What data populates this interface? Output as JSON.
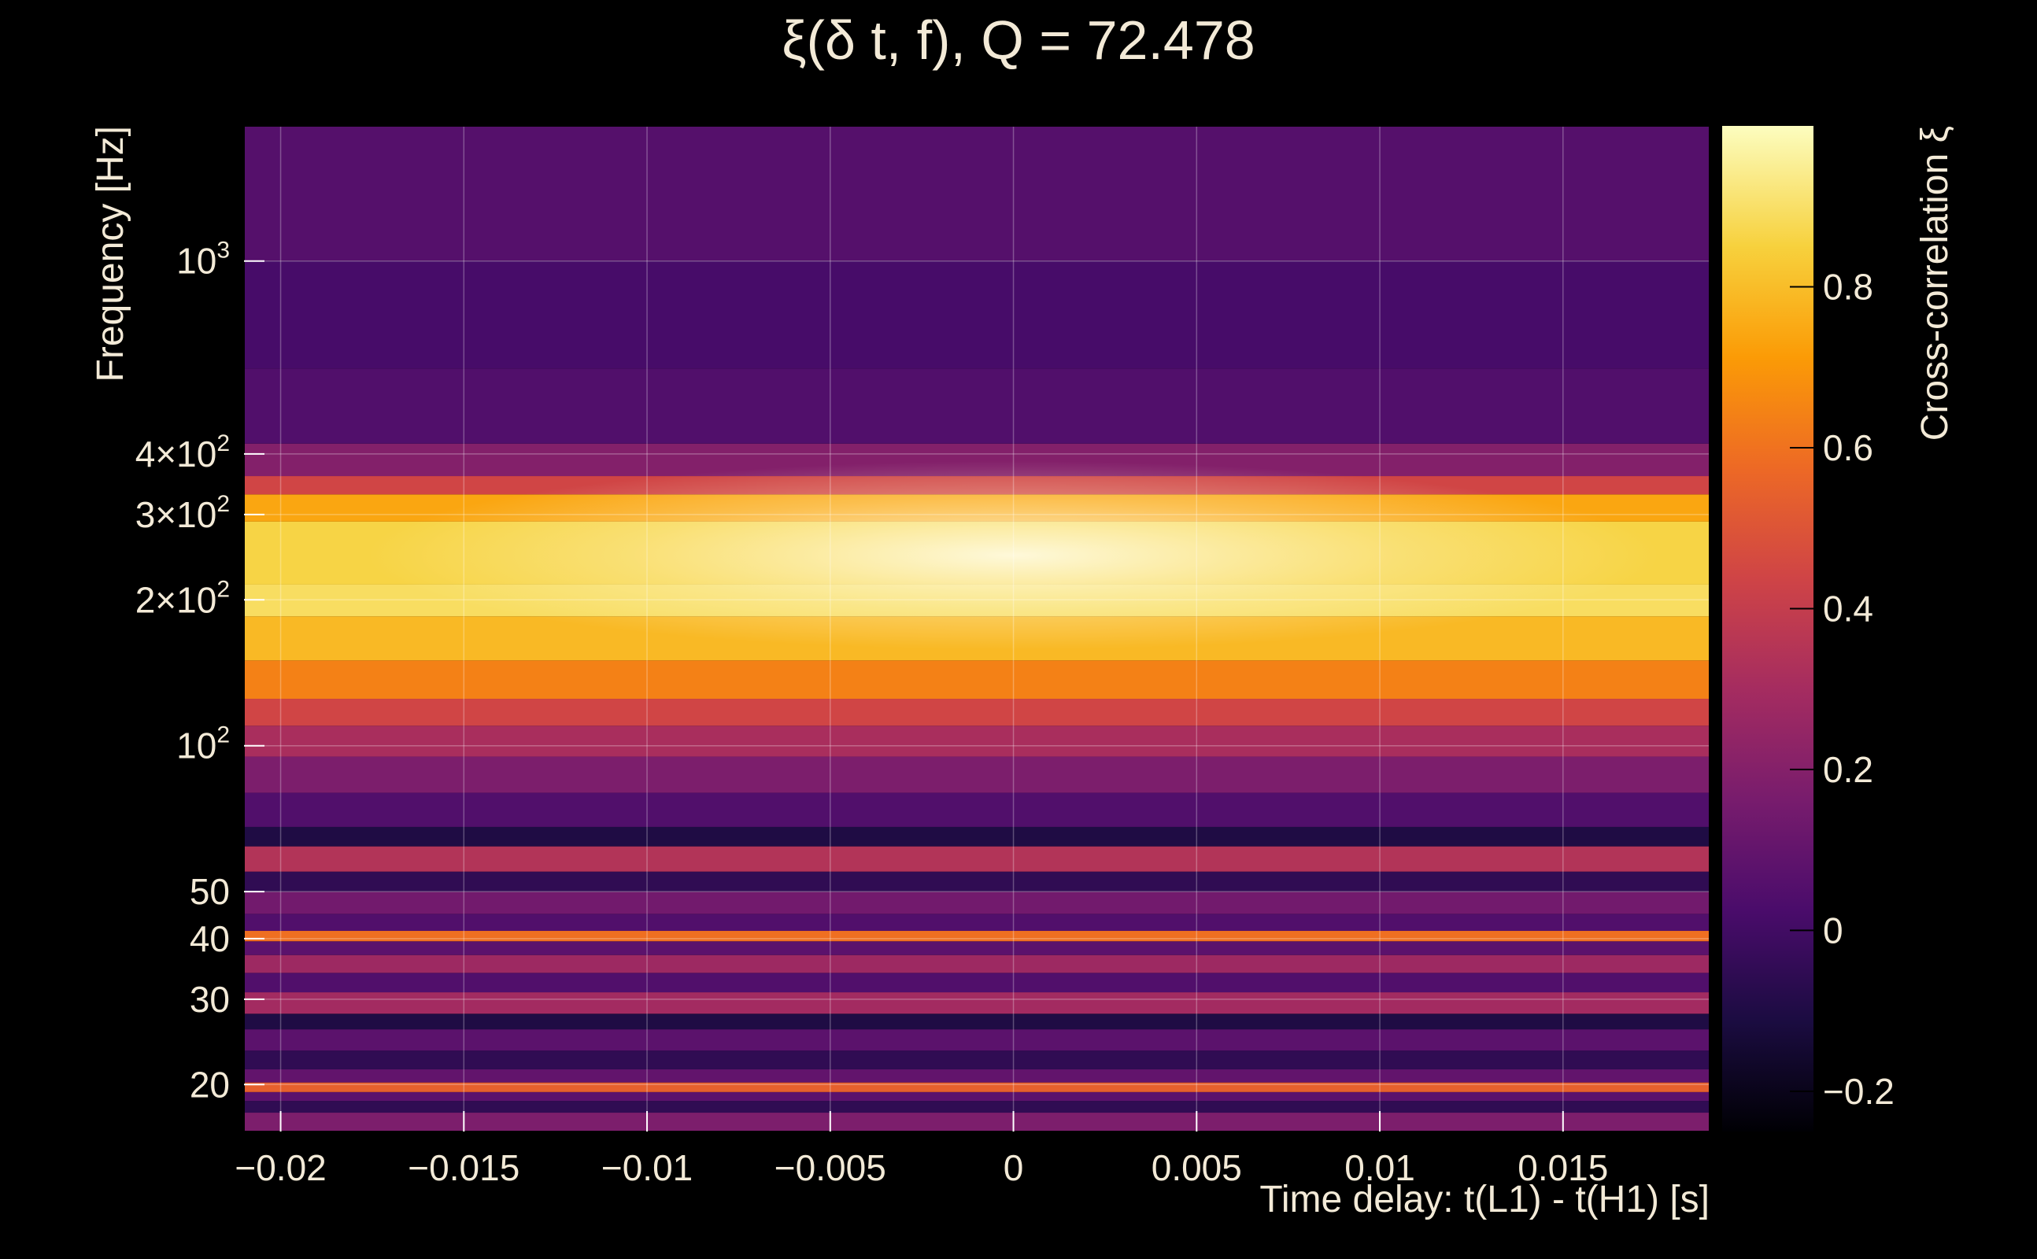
{
  "chart_data": {
    "type": "heatmap",
    "title": "ξ(δ t, f), Q = 72.478",
    "xlabel": "Time delay: t(L1) - t(H1) [s]",
    "ylabel": "Frequency [Hz]",
    "colorbar_label": "Cross-correlation ξ",
    "xlim": [
      -0.021,
      0.019
    ],
    "ylim": [
      16,
      1900
    ],
    "y_scale": "log",
    "grid": true,
    "colormap": [
      "#000004",
      "#1b0c41",
      "#4a0c6b",
      "#781c6d",
      "#a52c60",
      "#cf4446",
      "#ed6925",
      "#fb9b06",
      "#f7d13d",
      "#fcfdbf"
    ],
    "x_ticks": [
      {
        "value": -0.02,
        "label": "−0.02"
      },
      {
        "value": -0.015,
        "label": "−0.015"
      },
      {
        "value": -0.01,
        "label": "−0.01"
      },
      {
        "value": -0.005,
        "label": "−0.005"
      },
      {
        "value": 0,
        "label": "0"
      },
      {
        "value": 0.005,
        "label": "0.005"
      },
      {
        "value": 0.01,
        "label": "0.01"
      },
      {
        "value": 0.015,
        "label": "0.015"
      }
    ],
    "y_ticks": [
      {
        "value": 20,
        "label": "20"
      },
      {
        "value": 30,
        "label": "30"
      },
      {
        "value": 40,
        "label": "40"
      },
      {
        "value": 50,
        "label": "50"
      },
      {
        "value": 100,
        "label": "10",
        "exponent": "2"
      },
      {
        "value": 200,
        "label": "2×10",
        "exponent": "2"
      },
      {
        "value": 300,
        "label": "3×10",
        "exponent": "2"
      },
      {
        "value": 400,
        "label": "4×10",
        "exponent": "2"
      },
      {
        "value": 1000,
        "label": "10",
        "exponent": "3"
      }
    ],
    "colorbar": {
      "range": [
        -0.25,
        1.0
      ],
      "ticks": [
        {
          "value": 0.8,
          "label": "0.8"
        },
        {
          "value": 0.6,
          "label": "0.6"
        },
        {
          "value": 0.4,
          "label": "0.4"
        },
        {
          "value": 0.2,
          "label": "0.2"
        },
        {
          "value": 0,
          "label": "0"
        },
        {
          "value": -0.2,
          "label": "−0.2"
        }
      ]
    },
    "frequency_bands": [
      {
        "f_low": 16,
        "f_high": 17.5,
        "xi": 0.18
      },
      {
        "f_low": 17.5,
        "f_high": 18.5,
        "xi": -0.05
      },
      {
        "f_low": 18.5,
        "f_high": 19.3,
        "xi": 0.08
      },
      {
        "f_low": 19.3,
        "f_high": 20.2,
        "xi": 0.55
      },
      {
        "f_low": 20.2,
        "f_high": 21.5,
        "xi": 0.1
      },
      {
        "f_low": 21.5,
        "f_high": 23.5,
        "xi": -0.05
      },
      {
        "f_low": 23.5,
        "f_high": 26,
        "xi": 0.08
      },
      {
        "f_low": 26,
        "f_high": 28,
        "xi": -0.1
      },
      {
        "f_low": 28,
        "f_high": 31,
        "xi": 0.3
      },
      {
        "f_low": 31,
        "f_high": 34,
        "xi": 0.05
      },
      {
        "f_low": 34,
        "f_high": 37,
        "xi": 0.28
      },
      {
        "f_low": 37,
        "f_high": 39.5,
        "xi": 0.08
      },
      {
        "f_low": 39.5,
        "f_high": 41.5,
        "xi": 0.6
      },
      {
        "f_low": 41.5,
        "f_high": 45,
        "xi": 0.05
      },
      {
        "f_low": 45,
        "f_high": 50,
        "xi": 0.15
      },
      {
        "f_low": 50,
        "f_high": 55,
        "xi": -0.05
      },
      {
        "f_low": 55,
        "f_high": 62,
        "xi": 0.35
      },
      {
        "f_low": 62,
        "f_high": 68,
        "xi": -0.1
      },
      {
        "f_low": 68,
        "f_high": 80,
        "xi": 0.05
      },
      {
        "f_low": 80,
        "f_high": 95,
        "xi": 0.18
      },
      {
        "f_low": 95,
        "f_high": 110,
        "xi": 0.32
      },
      {
        "f_low": 110,
        "f_high": 125,
        "xi": 0.45
      },
      {
        "f_low": 125,
        "f_high": 150,
        "xi": 0.65
      },
      {
        "f_low": 150,
        "f_high": 185,
        "xi": 0.8
      },
      {
        "f_low": 185,
        "f_high": 215,
        "xi": 0.9
      },
      {
        "f_low": 215,
        "f_high": 290,
        "xi": 0.87
      },
      {
        "f_low": 290,
        "f_high": 330,
        "xi": 0.75
      },
      {
        "f_low": 330,
        "f_high": 360,
        "xi": 0.45
      },
      {
        "f_low": 360,
        "f_high": 420,
        "xi": 0.2
      },
      {
        "f_low": 420,
        "f_high": 600,
        "xi": 0.05
      },
      {
        "f_low": 600,
        "f_high": 1000,
        "xi": 0.02
      },
      {
        "f_low": 1000,
        "f_high": 1900,
        "xi": 0.06
      }
    ]
  }
}
